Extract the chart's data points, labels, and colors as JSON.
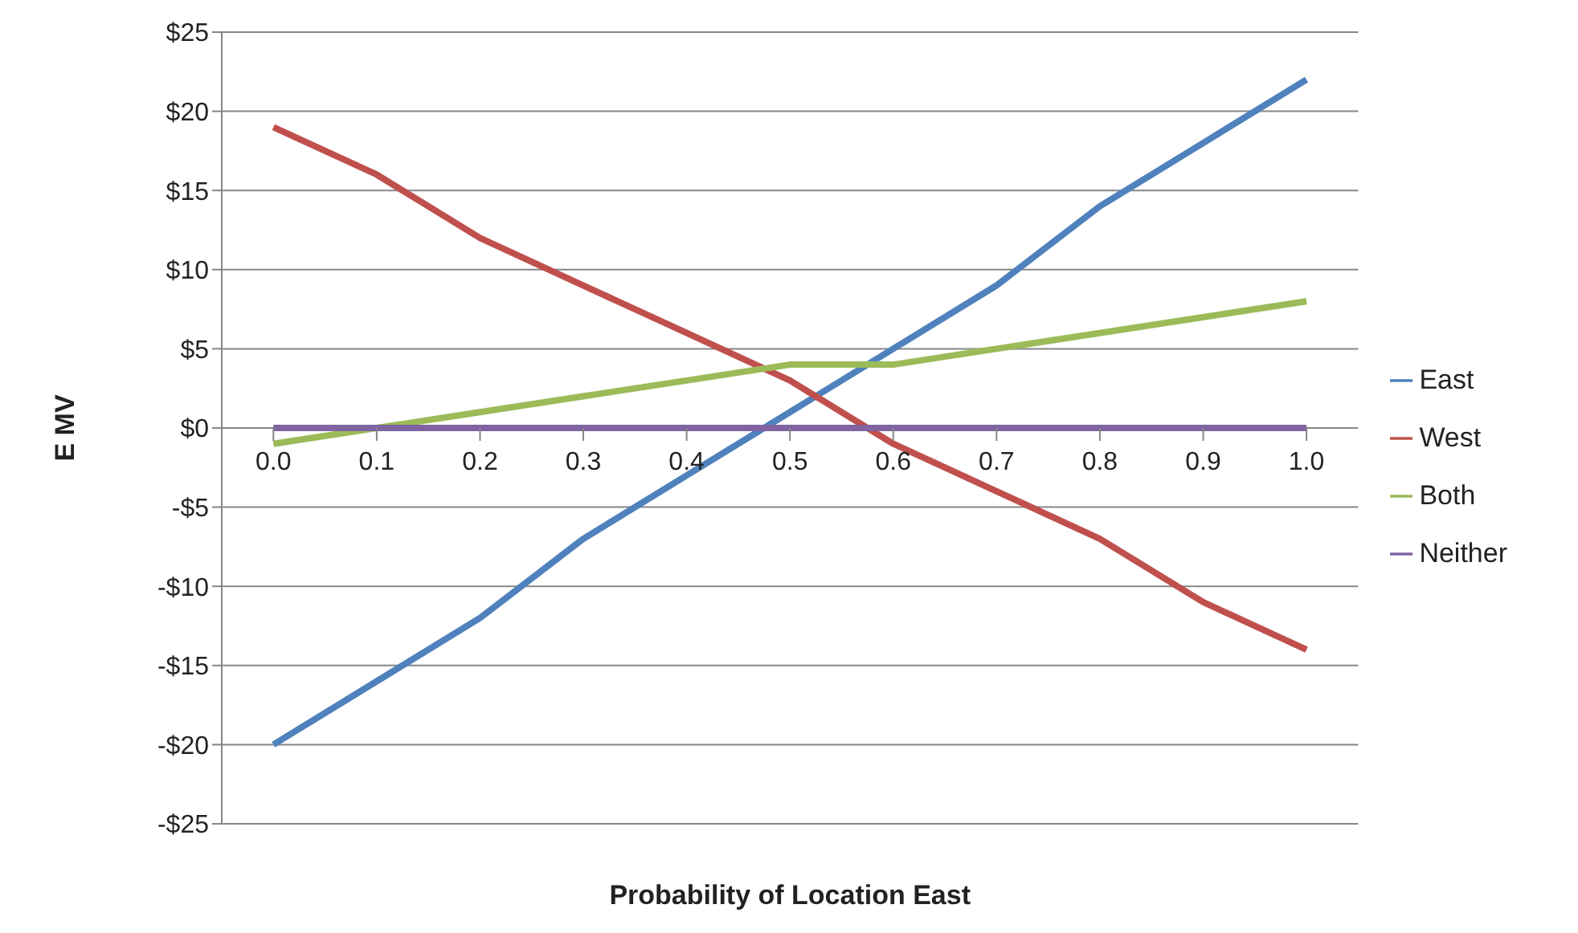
{
  "chart_data": {
    "type": "line",
    "xlabel": "Probability of Location East",
    "ylabel": "E MV",
    "categories": [
      "0.0",
      "0.1",
      "0.2",
      "0.3",
      "0.4",
      "0.5",
      "0.6",
      "0.7",
      "0.8",
      "0.9",
      "1.0"
    ],
    "series": [
      {
        "name": "East",
        "color": "#4f81bd",
        "values": [
          -20,
          -16,
          -12,
          -7,
          -3,
          1,
          5,
          9,
          14,
          18,
          22
        ]
      },
      {
        "name": "West",
        "color": "#c0504d",
        "values": [
          19,
          16,
          12,
          9,
          6,
          3,
          -1,
          -4,
          -7,
          -11,
          -14
        ]
      },
      {
        "name": "Both",
        "color": "#9bbb59",
        "values": [
          -1,
          0,
          1,
          2,
          3,
          4,
          4,
          5,
          6,
          7,
          8
        ]
      },
      {
        "name": "Neither",
        "color": "#8064a2",
        "values": [
          0,
          0,
          0,
          0,
          0,
          0,
          0,
          0,
          0,
          0,
          0
        ]
      }
    ],
    "ylim": [
      -25,
      25
    ],
    "yticks": [
      {
        "value": -25,
        "label": "-$25"
      },
      {
        "value": -20,
        "label": "-$20"
      },
      {
        "value": -15,
        "label": "-$15"
      },
      {
        "value": -10,
        "label": "-$10"
      },
      {
        "value": -5,
        "label": "-$5"
      },
      {
        "value": 0,
        "label": "$0"
      },
      {
        "value": 5,
        "label": "$5"
      },
      {
        "value": 10,
        "label": "$10"
      },
      {
        "value": 15,
        "label": "$15"
      },
      {
        "value": 20,
        "label": "$20"
      },
      {
        "value": 25,
        "label": "$25"
      }
    ],
    "grid": "y",
    "legend": "right",
    "marker": "none",
    "line_style": "solid"
  }
}
